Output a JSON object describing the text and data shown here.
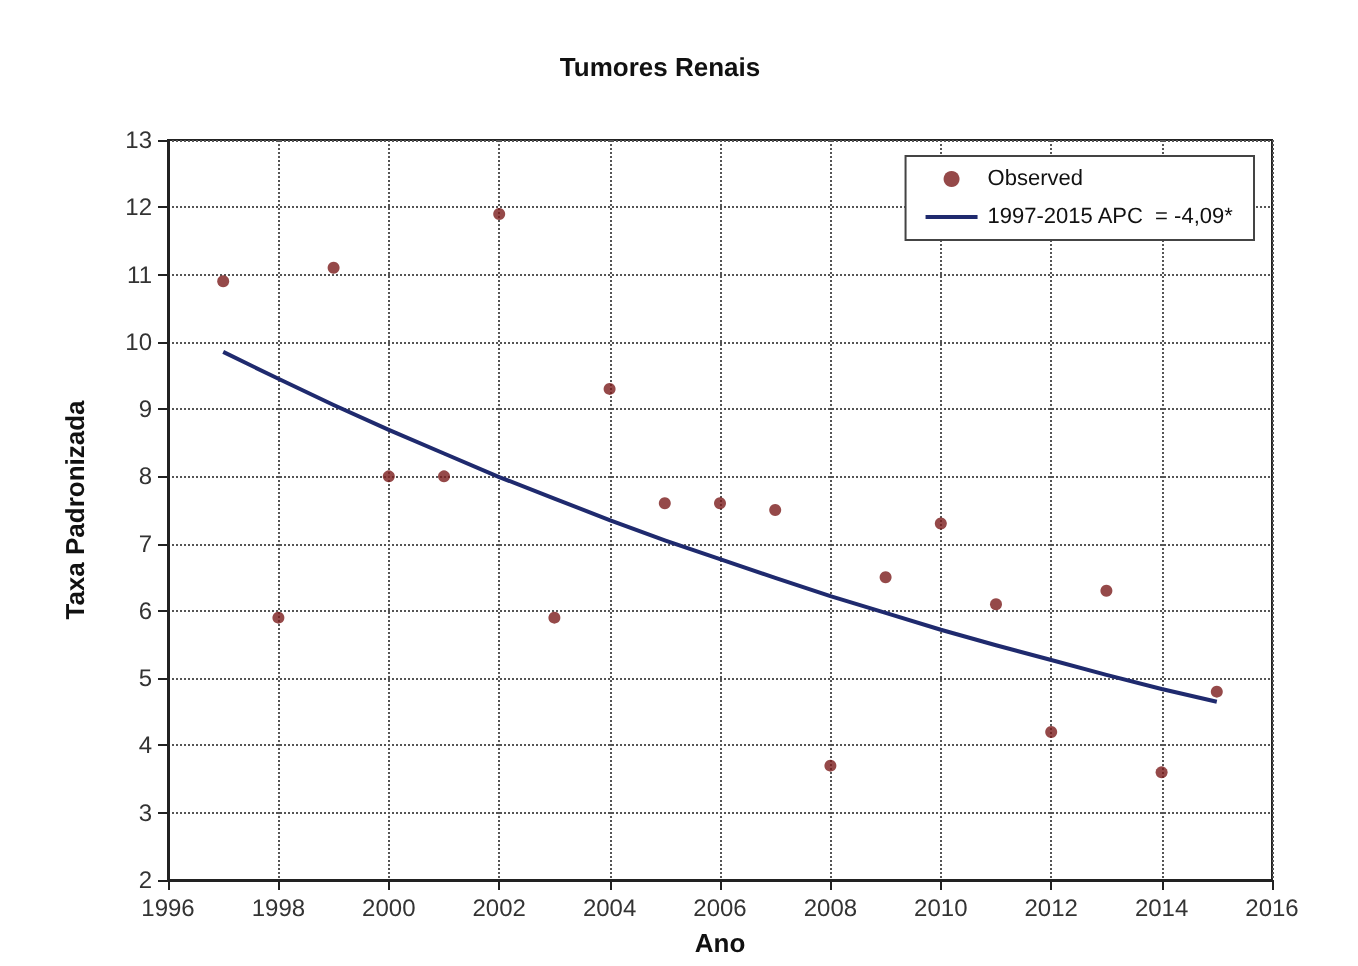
{
  "chart_data": {
    "type": "scatter",
    "title": "Tumores Renais",
    "xlabel": "Ano",
    "ylabel": "Taxa Padronizada",
    "xlim": [
      1996,
      2016
    ],
    "xticks": [
      1996,
      1998,
      2000,
      2002,
      2004,
      2006,
      2008,
      2010,
      2012,
      2014,
      2016
    ],
    "ylim": [
      2,
      13
    ],
    "yticks": [
      2,
      3,
      4,
      5,
      6,
      7,
      8,
      9,
      10,
      11,
      12,
      13
    ],
    "grid": true,
    "legend": "top right",
    "series": [
      {
        "name": "Observed",
        "marker": "circle",
        "color": "#7b1c1c",
        "x": [
          1997,
          1998,
          1999,
          2000,
          2001,
          2002,
          2003,
          2004,
          2005,
          2006,
          2007,
          2008,
          2009,
          2010,
          2011,
          2012,
          2013,
          2014,
          2015
        ],
        "values": [
          10.9,
          5.9,
          11.1,
          8.0,
          8.0,
          11.9,
          5.9,
          9.3,
          7.6,
          7.6,
          7.5,
          3.7,
          6.5,
          7.3,
          6.1,
          4.2,
          6.3,
          3.6,
          4.8
        ]
      },
      {
        "name": "1997-2015 APC  = -4,09*",
        "type": "line",
        "marker": "none",
        "color": "#1f2a6e",
        "x": [
          1997,
          1998,
          1999,
          2000,
          2001,
          2002,
          2003,
          2004,
          2005,
          2006,
          2007,
          2008,
          2009,
          2010,
          2011,
          2012,
          2013,
          2014,
          2015
        ],
        "values": [
          9.85,
          9.45,
          9.06,
          8.69,
          8.34,
          7.99,
          7.67,
          7.35,
          7.05,
          6.77,
          6.49,
          6.22,
          5.97,
          5.72,
          5.49,
          5.27,
          5.05,
          4.84,
          4.65
        ]
      }
    ]
  }
}
